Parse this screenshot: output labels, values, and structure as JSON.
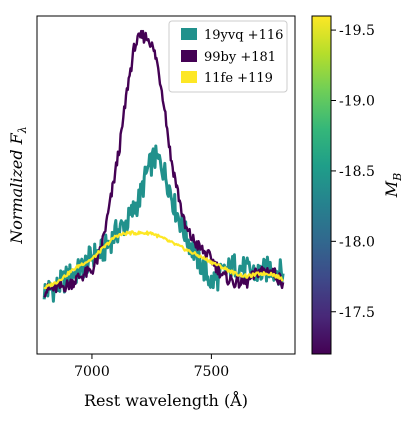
{
  "chart_data": {
    "type": "line",
    "xlabel": "Rest wavelength (Å)",
    "ylabel": "Normalized F",
    "ylabel_sub": "λ",
    "xlim": [
      6770,
      7850
    ],
    "ylim": [
      0,
      1
    ],
    "xticks": [
      7000,
      7500
    ],
    "xtick_labels": [
      "7000",
      "7500"
    ],
    "grid": false,
    "legend": {
      "placement": "top-right",
      "entries": [
        {
          "name": "19yvq +116",
          "color": "#21918c"
        },
        {
          "name": "99by +181",
          "color": "#440154"
        },
        {
          "name": "11fe +119",
          "color": "#fde725"
        }
      ]
    },
    "series": [
      {
        "name": "19yvq +116",
        "color": "#21918c",
        "x": [
          6800,
          6850,
          6900,
          6950,
          7000,
          7050,
          7100,
          7150,
          7200,
          7230,
          7260,
          7290,
          7320,
          7350,
          7400,
          7450,
          7500,
          7550,
          7600,
          7650,
          7700,
          7750,
          7800
        ],
        "y": [
          0.1,
          0.11,
          0.15,
          0.17,
          0.22,
          0.24,
          0.3,
          0.34,
          0.42,
          0.51,
          0.56,
          0.54,
          0.47,
          0.38,
          0.28,
          0.2,
          0.13,
          0.16,
          0.19,
          0.17,
          0.16,
          0.18,
          0.16
        ]
      },
      {
        "name": "99by +181",
        "color": "#440154",
        "x": [
          6800,
          6850,
          6900,
          6950,
          7000,
          7030,
          7060,
          7090,
          7120,
          7150,
          7180,
          7210,
          7240,
          7270,
          7300,
          7330,
          7360,
          7390,
          7420,
          7450,
          7500,
          7550,
          7600,
          7650,
          7700,
          7750,
          7800
        ],
        "y": [
          0.1,
          0.11,
          0.12,
          0.15,
          0.17,
          0.22,
          0.33,
          0.47,
          0.62,
          0.81,
          0.95,
          0.98,
          0.97,
          0.9,
          0.76,
          0.56,
          0.44,
          0.32,
          0.28,
          0.25,
          0.21,
          0.15,
          0.13,
          0.13,
          0.17,
          0.17,
          0.13
        ]
      },
      {
        "name": "11fe +119",
        "color": "#fde725",
        "x": [
          6800,
          6850,
          6900,
          6950,
          7000,
          7050,
          7100,
          7150,
          7200,
          7250,
          7300,
          7350,
          7400,
          7450,
          7500,
          7550,
          7600,
          7650,
          7700,
          7750,
          7800
        ],
        "y": [
          0.11,
          0.13,
          0.16,
          0.19,
          0.21,
          0.25,
          0.29,
          0.3,
          0.3,
          0.3,
          0.28,
          0.26,
          0.24,
          0.22,
          0.2,
          0.18,
          0.16,
          0.15,
          0.16,
          0.16,
          0.14
        ]
      }
    ],
    "colorbar": {
      "label": "M",
      "label_sub": "B",
      "cmap": [
        "#440154",
        "#482878",
        "#3e4989",
        "#31688e",
        "#26828e",
        "#1f9e89",
        "#35b779",
        "#6ece58",
        "#b5de2b",
        "#fde725"
      ],
      "range": [
        -17.2,
        -19.6
      ],
      "ticks": [
        -19.5,
        -19.0,
        -18.5,
        -18.0,
        -17.5
      ],
      "tick_labels": [
        "-19.5",
        "-19.0",
        "-18.5",
        "-18.0",
        "-17.5"
      ]
    }
  }
}
